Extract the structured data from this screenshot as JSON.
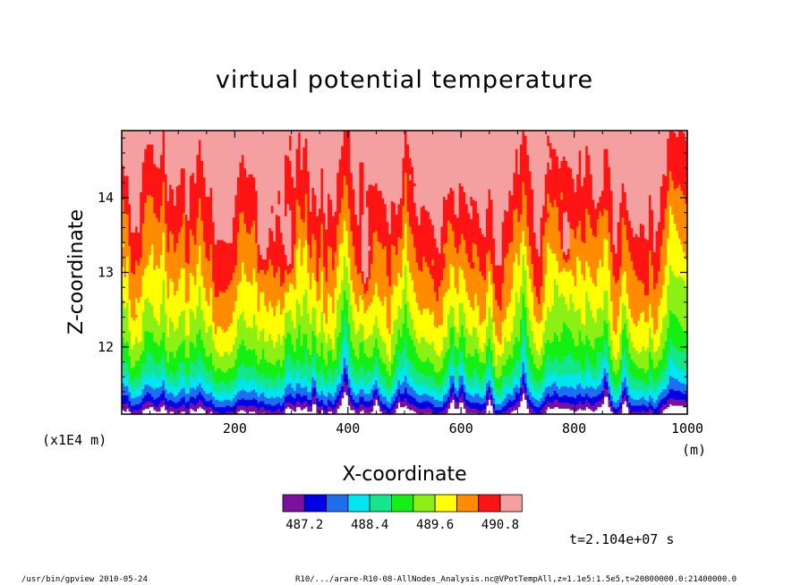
{
  "chart_data": {
    "type": "heatmap",
    "title": "virtual potential temperature",
    "xlabel": "X-coordinate",
    "ylabel": "Z-coordinate",
    "x_unit": "(m)",
    "y_unit": "(x1E4 m)",
    "xlim": [
      0,
      1000
    ],
    "ylim": [
      11.1,
      14.9
    ],
    "x_ticks": [
      "200",
      "400",
      "600",
      "800",
      "1000"
    ],
    "x_tick_values": [
      200,
      400,
      600,
      800,
      1000
    ],
    "y_ticks": [
      "12",
      "13",
      "14"
    ],
    "y_tick_values": [
      12,
      13,
      14
    ],
    "colorbar": {
      "levels": [
        486.8,
        487.2,
        487.6,
        488.0,
        488.4,
        488.8,
        489.2,
        489.6,
        490.0,
        490.4,
        490.8,
        491.2
      ],
      "labels": [
        "487.2",
        "488.4",
        "489.6",
        "490.8"
      ],
      "colors": [
        "#7b0fa0",
        "#0000e6",
        "#1e6ef0",
        "#00e6f0",
        "#14e68c",
        "#14f014",
        "#8cf014",
        "#ffff00",
        "#ff8c00",
        "#ff1414",
        "#f4a0a0"
      ]
    },
    "annotation": "t=2.104e+07 s"
  },
  "footer": {
    "left": "/usr/bin/gpview  2010-05-24",
    "right": "R10/.../arare-R10-08-AllNodes_Analysis.nc@VPotTempAll,z=1.1e5:1.5e5,t=20800000.0:21400000.0"
  }
}
